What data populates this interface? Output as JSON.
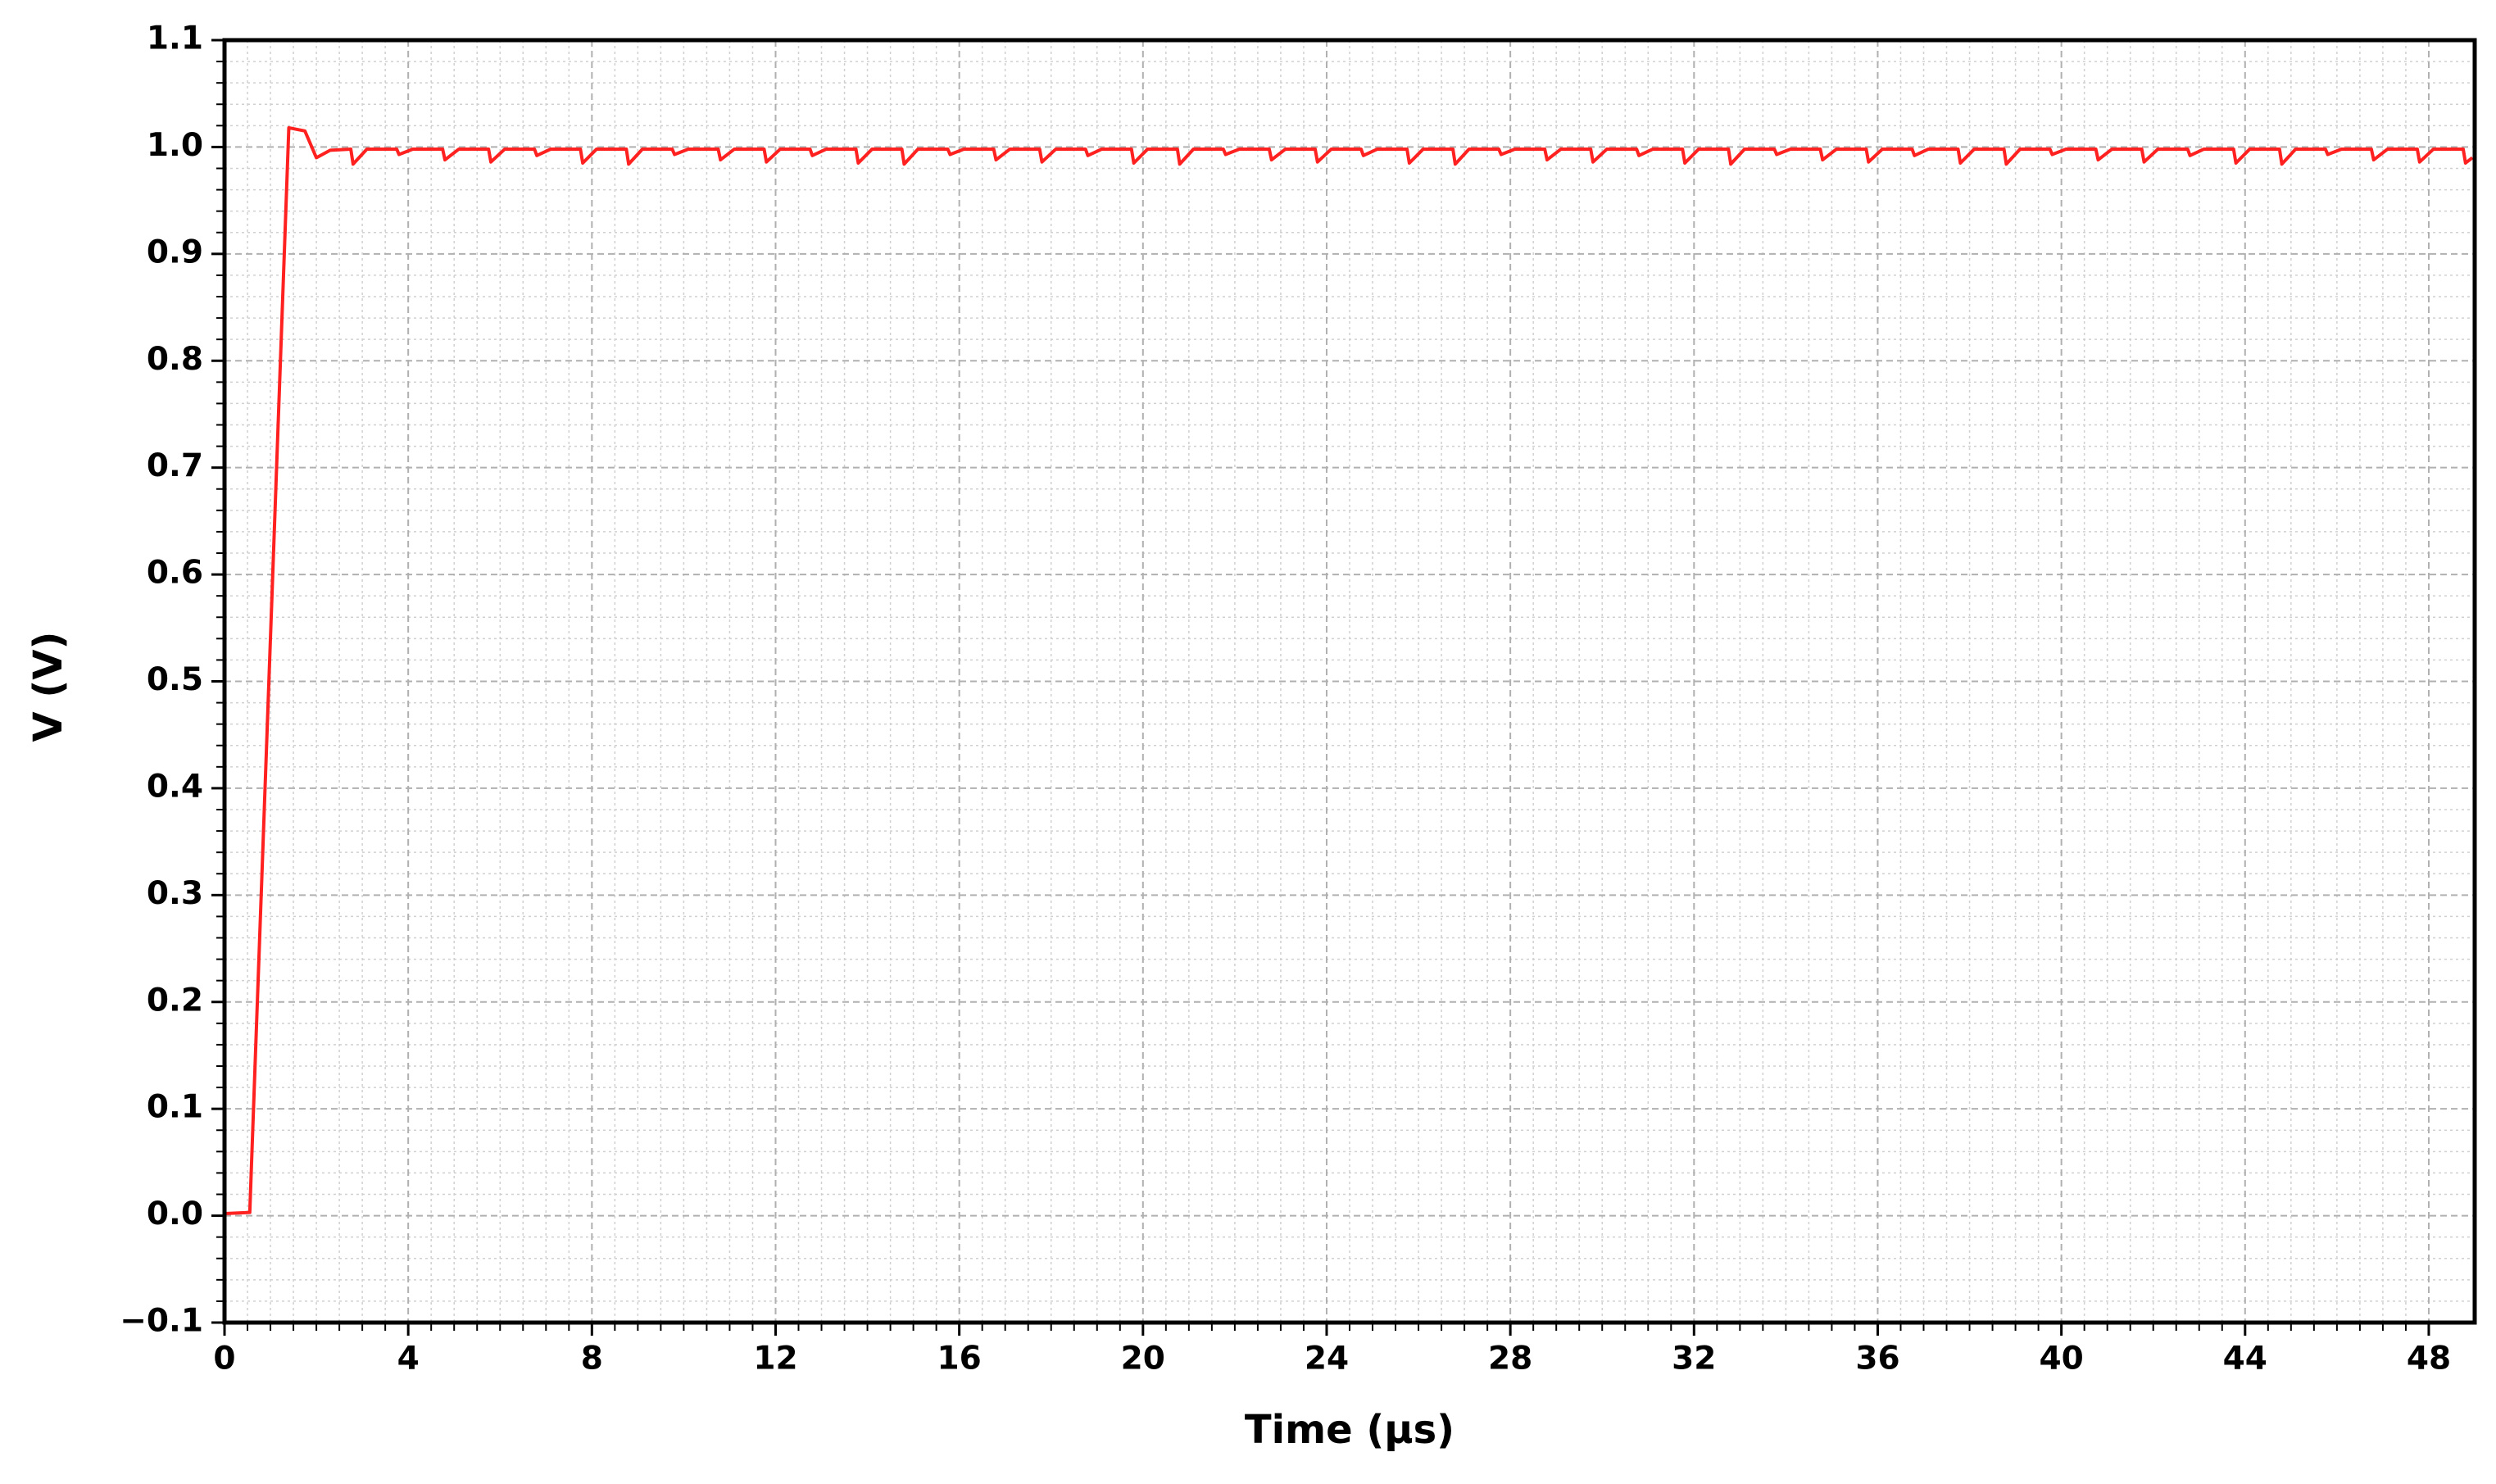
{
  "chart_data": {
    "type": "line",
    "x_label": "Time (µs)",
    "y_label": "V (V)",
    "x": [
      0,
      0.55,
      1.4,
      1.75,
      2.0,
      2.3,
      2.75,
      2.8,
      3.1,
      3.75,
      3.8,
      4.1,
      4.75,
      4.8,
      5.1,
      5.75,
      5.8,
      6.1,
      6.75,
      6.8,
      7.1,
      7.75,
      7.8,
      8.1,
      8.75,
      8.8,
      9.1,
      9.75,
      9.8,
      10.1,
      10.75,
      10.8,
      11.1,
      11.75,
      11.8,
      12.1,
      12.75,
      12.8,
      13.1,
      13.75,
      13.8,
      14.1,
      14.75,
      14.8,
      15.1,
      15.75,
      15.8,
      16.1,
      16.75,
      16.8,
      17.1,
      17.75,
      17.8,
      18.1,
      18.75,
      18.8,
      19.1,
      19.75,
      19.8,
      20.1,
      20.75,
      20.8,
      21.1,
      21.75,
      21.8,
      22.1,
      22.75,
      22.8,
      23.1,
      23.75,
      23.8,
      24.1,
      24.75,
      24.8,
      25.1,
      25.75,
      25.8,
      26.1,
      26.75,
      26.8,
      27.1,
      27.75,
      27.8,
      28.1,
      28.75,
      28.8,
      29.1,
      29.75,
      29.8,
      30.1,
      30.75,
      30.8,
      31.1,
      31.75,
      31.8,
      32.1,
      32.75,
      32.8,
      33.1,
      33.75,
      33.8,
      34.1,
      34.75,
      34.8,
      35.1,
      35.75,
      35.8,
      36.1,
      36.75,
      36.8,
      37.1,
      37.75,
      37.8,
      38.1,
      38.75,
      38.8,
      39.1,
      39.75,
      39.8,
      40.1,
      40.75,
      40.8,
      41.1,
      41.75,
      41.8,
      42.1,
      42.75,
      42.8,
      43.1,
      43.75,
      43.8,
      44.1,
      44.75,
      44.8,
      45.1,
      45.75,
      45.8,
      46.1,
      46.75,
      46.8,
      47.1,
      47.75,
      47.8,
      48.1,
      48.75,
      48.8,
      48.95
    ],
    "series": [
      {
        "color": "#ff2020",
        "values": [
          0.002,
          0.003,
          1.018,
          1.015,
          0.99,
          0.997,
          0.998,
          0.984,
          0.998,
          0.998,
          0.993,
          0.998,
          0.998,
          0.988,
          0.998,
          0.998,
          0.986,
          0.998,
          0.998,
          0.992,
          0.998,
          0.998,
          0.985,
          0.998,
          0.998,
          0.984,
          0.998,
          0.998,
          0.993,
          0.998,
          0.998,
          0.988,
          0.998,
          0.998,
          0.986,
          0.998,
          0.998,
          0.992,
          0.998,
          0.998,
          0.985,
          0.998,
          0.998,
          0.984,
          0.998,
          0.998,
          0.993,
          0.998,
          0.998,
          0.988,
          0.998,
          0.998,
          0.986,
          0.998,
          0.998,
          0.992,
          0.998,
          0.998,
          0.985,
          0.998,
          0.998,
          0.984,
          0.998,
          0.998,
          0.993,
          0.998,
          0.998,
          0.988,
          0.998,
          0.998,
          0.986,
          0.998,
          0.998,
          0.992,
          0.998,
          0.998,
          0.985,
          0.998,
          0.998,
          0.984,
          0.998,
          0.998,
          0.993,
          0.998,
          0.998,
          0.988,
          0.998,
          0.998,
          0.986,
          0.998,
          0.998,
          0.992,
          0.998,
          0.998,
          0.985,
          0.998,
          0.998,
          0.984,
          0.998,
          0.998,
          0.993,
          0.998,
          0.998,
          0.988,
          0.998,
          0.998,
          0.986,
          0.998,
          0.998,
          0.992,
          0.998,
          0.998,
          0.985,
          0.998,
          0.998,
          0.984,
          0.998,
          0.998,
          0.993,
          0.998,
          0.998,
          0.988,
          0.998,
          0.998,
          0.986,
          0.998,
          0.998,
          0.992,
          0.998,
          0.998,
          0.985,
          0.998,
          0.998,
          0.984,
          0.998,
          0.998,
          0.993,
          0.998,
          0.998,
          0.988,
          0.998,
          0.998,
          0.986,
          0.998,
          0.998,
          0.985,
          0.99
        ]
      }
    ],
    "xlim": [
      0,
      49
    ],
    "ylim": [
      -0.1,
      1.1
    ],
    "xticks": [
      0,
      4,
      8,
      12,
      16,
      20,
      24,
      28,
      32,
      36,
      40,
      44,
      48
    ],
    "yticks": [
      {
        "value": -0.1,
        "label": "−0.1"
      },
      {
        "value": 0,
        "label": "0.0"
      },
      0.1,
      0.2,
      0.3,
      0.4,
      0.5,
      0.6,
      0.7,
      0.8,
      0.9,
      {
        "value": 1,
        "label": "1.0"
      },
      1.1
    ],
    "grid": true
  }
}
